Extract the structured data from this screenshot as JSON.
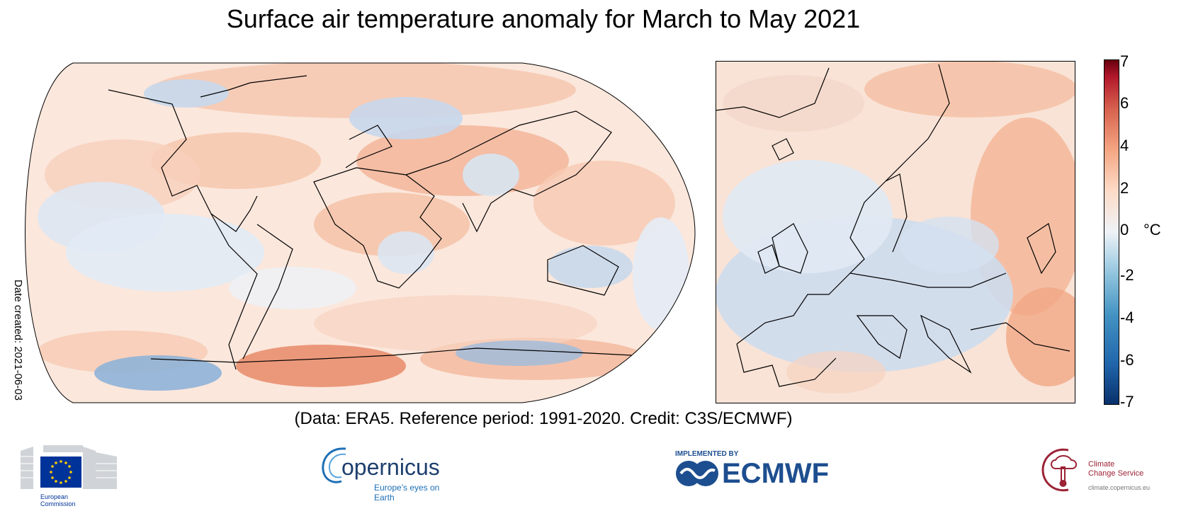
{
  "title": "Surface air temperature anomaly for March to May 2021",
  "credit_line": "(Data: ERA5.  Reference period: 1991-2020.  Credit: C3S/ECMWF)",
  "date_created": "Date created: 2021-06-03",
  "colorbar": {
    "unit": "°C",
    "range": [
      -7,
      7
    ],
    "ticks": [
      "7",
      "6",
      "4",
      "2",
      "0",
      "-2",
      "-4",
      "-6",
      "-7"
    ],
    "colors": [
      "#08306b",
      "#2166ac",
      "#4393c3",
      "#92c5de",
      "#e8eef5",
      "#fddbc7",
      "#f4a582",
      "#d6604d",
      "#b2182b",
      "#67000d"
    ]
  },
  "panels": [
    {
      "name": "world-map",
      "projection": "robinson-like"
    },
    {
      "name": "europe-map",
      "projection": "regional"
    }
  ],
  "logos": {
    "ec": {
      "line1": "European",
      "line2": "Commission"
    },
    "copernicus": {
      "name": "opernicus",
      "tagline": "Europe's eyes on Earth"
    },
    "ecmwf": {
      "top": "IMPLEMENTED BY",
      "name": "ECMWF"
    },
    "c3s": {
      "line1": "Climate",
      "line2": "Change Service",
      "url": "climate.copernicus.eu"
    }
  }
}
